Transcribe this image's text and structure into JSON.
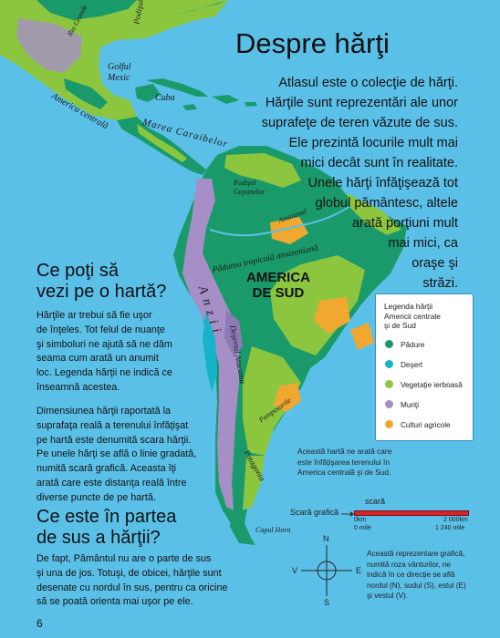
{
  "page_title": "Despre hărţi",
  "intro_lines": [
    "Atlasul este o colecţie de hărţi.",
    "Hărţile sunt reprezentări ale unor",
    "suprafeţe de teren văzute de sus.",
    "Ele prezintă locurile mult mai",
    "mici decât sunt în realitate.",
    "Unele hărţi înfăţişează tot",
    "globul pământesc, altele",
    "arată porţiuni mult",
    "mai mici, ca",
    "oraşe şi",
    "străzi."
  ],
  "section1": {
    "heading": [
      "Ce poţi să",
      "vezi pe o hartă?"
    ],
    "paragraph1": [
      "Hărţile ar trebui să fie uşor",
      "de înţeles. Tot felul de nuanţe",
      "şi simboluri ne ajută să ne dăm",
      "seama cum arată un anumit",
      "loc. Legenda hărţii ne indică ce",
      "înseamnă acestea."
    ],
    "paragraph2": [
      "Dimensiunea hărţii raportată la",
      "suprafaţa reală a terenului înfăţişat",
      "pe hartă este denumită scara hărţii.",
      "Pe unele hărţi se află o linie gradată,",
      "numită scară grafică. Aceasta îţi",
      "arată care este distanţa reală între",
      "diverse puncte de pe hartă."
    ]
  },
  "section2": {
    "heading": [
      "Ce este în partea",
      "de sus a hărţii?"
    ],
    "paragraph": [
      "De fapt, Pământul nu are o parte de sus",
      "şi una de jos. Totuşi, de obicei, hărţile sunt",
      "desenate cu nordul în sus, pentru ca oricine",
      "să se poată orienta mai uşor pe ele."
    ]
  },
  "page_number": "6",
  "map_labels": {
    "rio_grande": "Rio Grande",
    "golful_mexic": [
      "Golful",
      "Mexic"
    ],
    "cuba": "Cuba",
    "marea_caraibelor": "Marea Caraibelor",
    "america_centrala": "America centrală",
    "podisul_guyanelor": [
      "Podişul",
      "Guyanelor"
    ],
    "amazonul": "Amazonul",
    "padurea": "Pădurea tropicală amazoniană",
    "america_de_sud": [
      "AMERICA",
      "DE SUD"
    ],
    "anzii": "Anzii",
    "desertul_atacama": "Deşertul Atacama",
    "pampasurile": "Pampasurile",
    "patagonia": "Patagonia",
    "capul_horn": "Capul Horn",
    "top_word": "Podişul"
  },
  "legend": {
    "title": [
      "Legenda hărţii",
      "Americii centrale",
      "şi de Sud"
    ],
    "items": [
      {
        "label": "Pădure",
        "color": "#1a9a6a"
      },
      {
        "label": "Deşert",
        "color": "#17b3c8"
      },
      {
        "label": "Vegetaţie ierboasă",
        "color": "#8cc63f"
      },
      {
        "label": "Munţi",
        "color": "#a58fc6"
      },
      {
        "label": "Culturi agricole",
        "color": "#f0a830"
      }
    ]
  },
  "map_caption": [
    "Această hartă ne arată care",
    "este înfăţişarea terenului în",
    "America centrală şi de Sud."
  ],
  "scale": {
    "label": "Scară grafică",
    "title": "scară",
    "km_left": "0km",
    "km_right": "2 000km",
    "mile_left": "0 mile",
    "mile_right": "1 240 mile"
  },
  "compass": {
    "n": "N",
    "s": "S",
    "e": "E",
    "w": "V"
  },
  "compass_caption": [
    "Această reprezentare grafică,",
    "numită roza vânturilor, ne",
    "indică în ce direcţie se află",
    "nordul (N), sudul (S), estul (E)",
    "şi vestul (V)."
  ],
  "colors": {
    "ocean": "#5bc0e8",
    "forest": "#1a9a6a",
    "grass": "#8cc63f",
    "mountains": "#a58fc6",
    "crops": "#f0a830",
    "desert": "#17b3c8",
    "scale_bar": "#d8232a"
  }
}
